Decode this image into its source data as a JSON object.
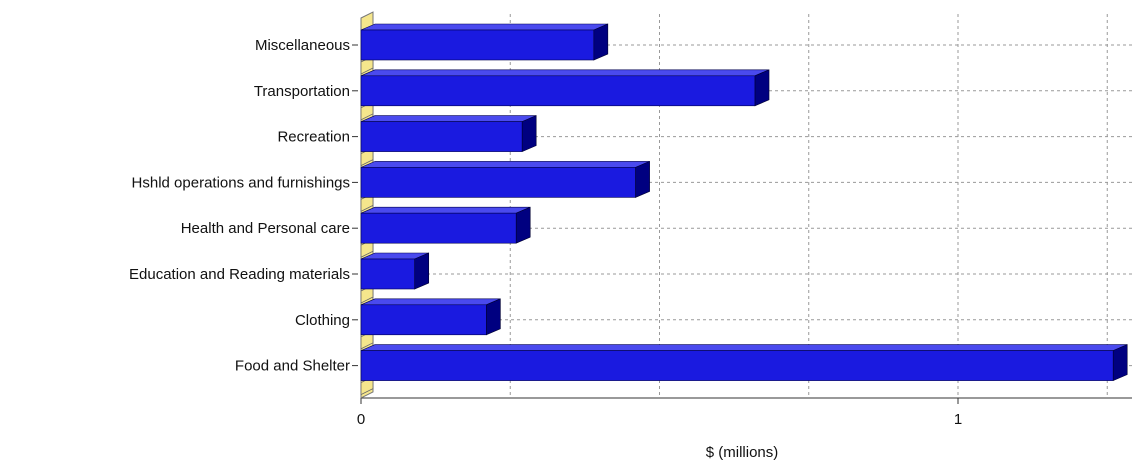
{
  "chart_data": {
    "type": "bar",
    "orientation": "horizontal",
    "categories": [
      "Miscellaneous",
      "Transportation",
      "Recreation",
      "Hshld operations and furnishings",
      "Health and Personal care",
      "Education and Reading materials",
      "Clothing",
      "Food and Shelter"
    ],
    "values": [
      0.39,
      0.66,
      0.27,
      0.46,
      0.26,
      0.09,
      0.21,
      1.26
    ],
    "xlabel": "$ (millions)",
    "xlim": [
      0,
      1.3
    ],
    "x_ticks": [
      {
        "value": 0,
        "label": "0"
      },
      {
        "value": 1,
        "label": "1"
      }
    ],
    "grid": true,
    "bar_color": "#1a1ae0",
    "bar_side_color": "#000080",
    "bar_top_color": "#4a4aee",
    "floor_color": "#f5e68c",
    "grid_color": "#999999"
  }
}
